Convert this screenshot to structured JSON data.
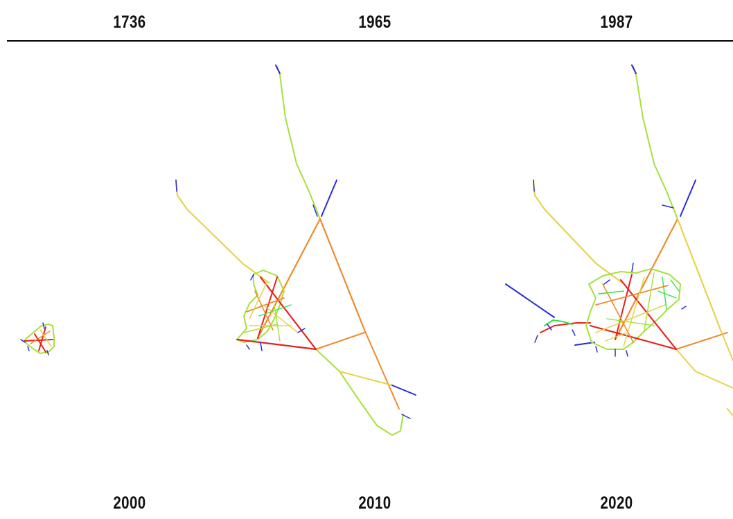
{
  "header": {
    "years_top": [
      "1736",
      "1965",
      "1987"
    ],
    "years_bottom": [
      "2000",
      "2010",
      "2020"
    ]
  },
  "legend_colors": {
    "high": "#e8201c",
    "mid_high": "#ef8a2c",
    "mid": "#e6d34a",
    "mid_low": "#a6e13a",
    "low": "#2ee34a",
    "lowest": "#2a2adf"
  }
}
